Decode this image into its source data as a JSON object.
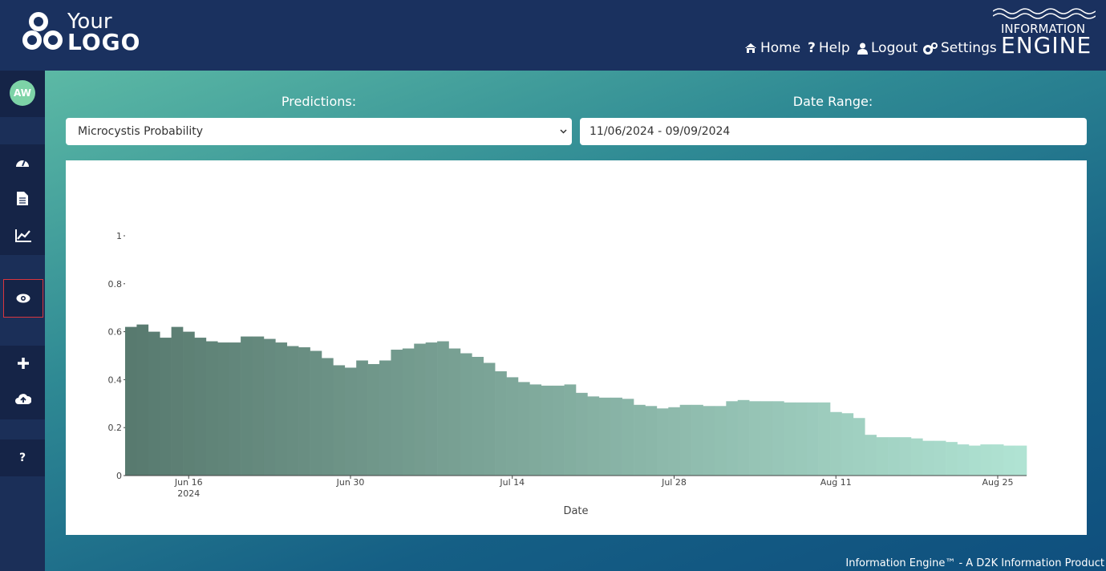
{
  "header": {
    "logo_top": "Your",
    "logo_bottom": "LOGO",
    "nav": [
      "Home",
      "Help",
      "Logout",
      "Settings"
    ],
    "brand_top": "INFORMATION",
    "brand_bottom": "ENGINE"
  },
  "sidebar": {
    "avatar": "AW",
    "help": "?"
  },
  "form": {
    "predictions_label": "Predictions:",
    "predictions_value": "Microcystis Probability",
    "date_range_label": "Date Range:",
    "date_range_value": "11/06/2024 - 09/09/2024"
  },
  "chart_data": {
    "type": "bar",
    "x": [
      "2024-06-11",
      "2024-06-12",
      "2024-06-13",
      "2024-06-14",
      "2024-06-15",
      "2024-06-16",
      "2024-06-17",
      "2024-06-18",
      "2024-06-19",
      "2024-06-20",
      "2024-06-21",
      "2024-06-22",
      "2024-06-23",
      "2024-06-24",
      "2024-06-25",
      "2024-06-26",
      "2024-06-27",
      "2024-06-28",
      "2024-06-29",
      "2024-06-30",
      "2024-07-01",
      "2024-07-02",
      "2024-07-03",
      "2024-07-04",
      "2024-07-05",
      "2024-07-06",
      "2024-07-07",
      "2024-07-08",
      "2024-07-09",
      "2024-07-10",
      "2024-07-11",
      "2024-07-12",
      "2024-07-13",
      "2024-07-14",
      "2024-07-15",
      "2024-07-16",
      "2024-07-17",
      "2024-07-18",
      "2024-07-19",
      "2024-07-20",
      "2024-07-21",
      "2024-07-22",
      "2024-07-23",
      "2024-07-24",
      "2024-07-25",
      "2024-07-26",
      "2024-07-27",
      "2024-07-28",
      "2024-07-29",
      "2024-07-30",
      "2024-07-31",
      "2024-08-01",
      "2024-08-02",
      "2024-08-03",
      "2024-08-04",
      "2024-08-05",
      "2024-08-06",
      "2024-08-07",
      "2024-08-08",
      "2024-08-09",
      "2024-08-10",
      "2024-08-11",
      "2024-08-12",
      "2024-08-13",
      "2024-08-14",
      "2024-08-15",
      "2024-08-16",
      "2024-08-17",
      "2024-08-18",
      "2024-08-19",
      "2024-08-20",
      "2024-08-21",
      "2024-08-22",
      "2024-08-23",
      "2024-08-24",
      "2024-08-25",
      "2024-08-26",
      "2024-08-27"
    ],
    "values": [
      0.62,
      0.63,
      0.6,
      0.575,
      0.62,
      0.6,
      0.575,
      0.56,
      0.555,
      0.555,
      0.58,
      0.58,
      0.57,
      0.555,
      0.54,
      0.535,
      0.52,
      0.49,
      0.46,
      0.45,
      0.48,
      0.465,
      0.48,
      0.525,
      0.53,
      0.55,
      0.555,
      0.56,
      0.53,
      0.51,
      0.495,
      0.47,
      0.435,
      0.41,
      0.39,
      0.38,
      0.375,
      0.375,
      0.38,
      0.345,
      0.33,
      0.325,
      0.325,
      0.32,
      0.295,
      0.29,
      0.28,
      0.285,
      0.295,
      0.295,
      0.29,
      0.29,
      0.31,
      0.315,
      0.31,
      0.31,
      0.31,
      0.305,
      0.305,
      0.305,
      0.305,
      0.265,
      0.26,
      0.24,
      0.17,
      0.16,
      0.16,
      0.16,
      0.155,
      0.145,
      0.145,
      0.14,
      0.13,
      0.125,
      0.13,
      0.13,
      0.125,
      0.125
    ],
    "colorscale": [
      "#587a6f",
      "#b0e3d3"
    ],
    "xlim": [
      "2024-06-10T12:00:00Z",
      "2024-08-27T12:00:00Z"
    ],
    "xticks": [
      {
        "value": "2024-06-16",
        "label": "Jun 16"
      },
      {
        "value": "2024-06-30",
        "label": "Jun 30"
      },
      {
        "value": "2024-07-14",
        "label": "Jul 14"
      },
      {
        "value": "2024-07-28",
        "label": "Jul 28"
      },
      {
        "value": "2024-08-11",
        "label": "Aug 11"
      },
      {
        "value": "2024-08-25",
        "label": "Aug 25"
      }
    ],
    "xtick_year": "2024",
    "ylim": [
      0,
      1
    ],
    "yticks": [
      0,
      0.2,
      0.4,
      0.6,
      0.8,
      1
    ],
    "xlabel": "Date",
    "grid": false
  },
  "footer": "Information Engine™ - A D2K Information Product"
}
